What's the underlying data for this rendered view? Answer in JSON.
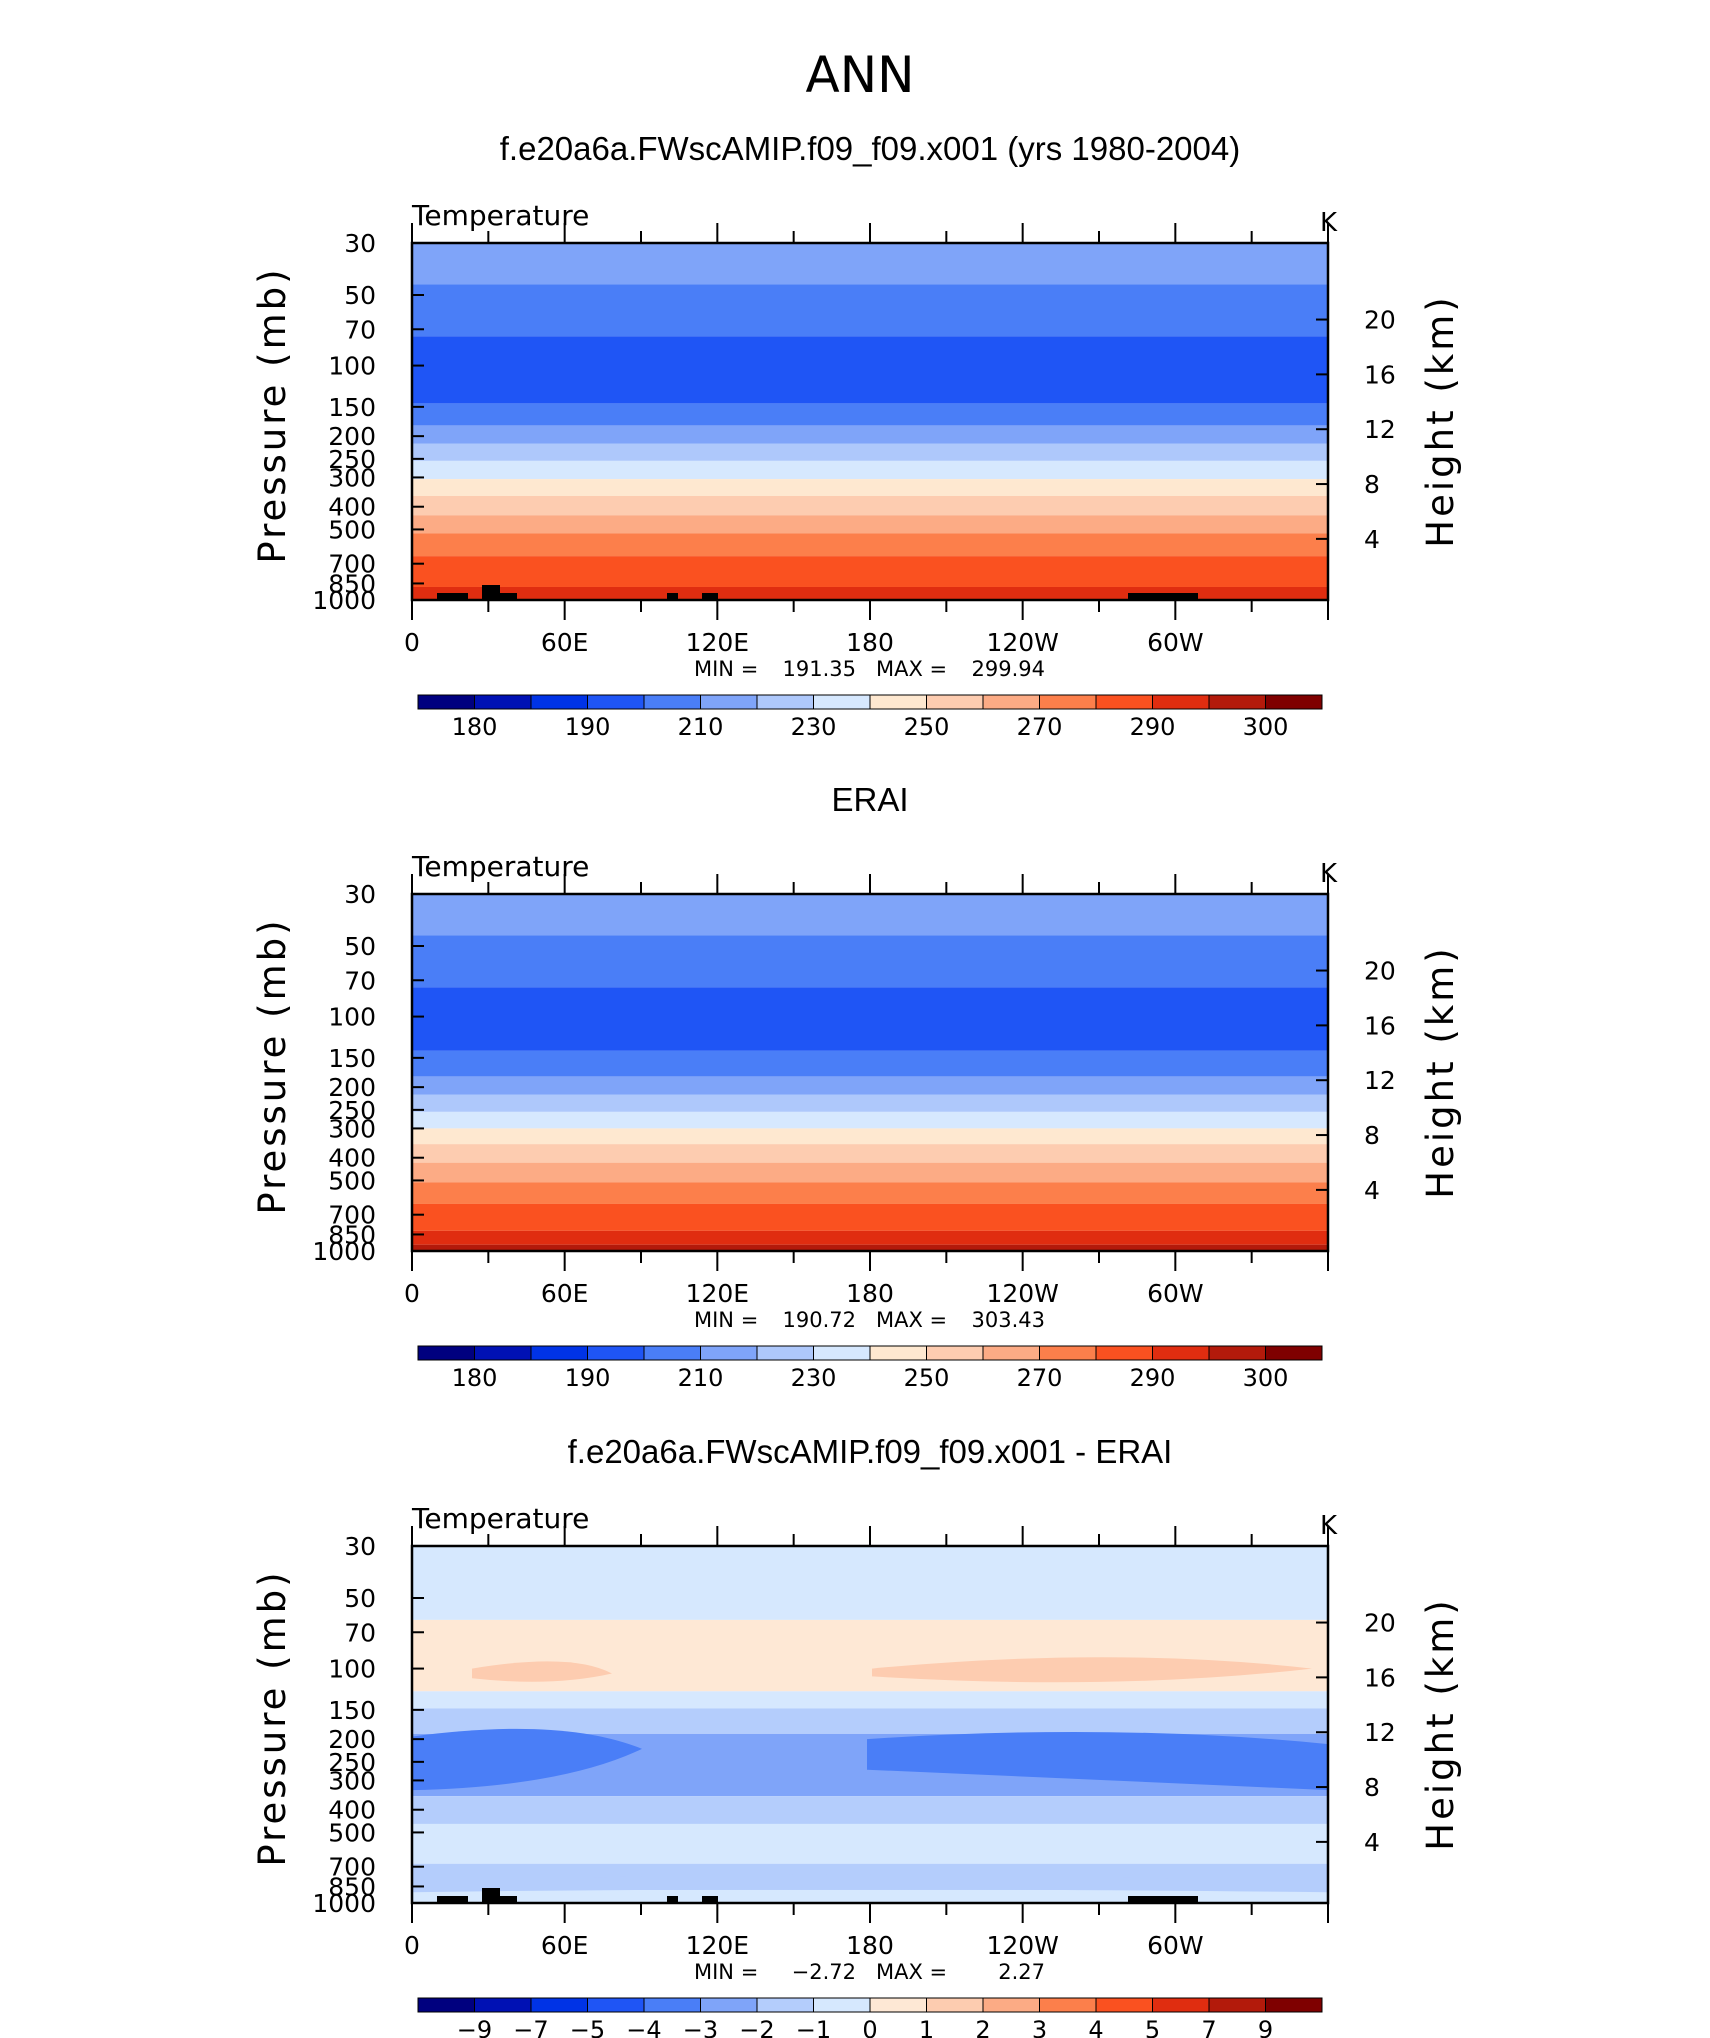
{
  "figure_title": "ANN",
  "colors": {
    "abs": [
      "#00007f",
      "#0011b4",
      "#0033e6",
      "#1f55f5",
      "#4a7ef7",
      "#7fa4f9",
      "#aec8fb",
      "#d6e8fe",
      "#fee8d0",
      "#fdccb0",
      "#fcab85",
      "#fc7f4b",
      "#fa5120",
      "#e02d10",
      "#b31a0b",
      "#7f0000"
    ],
    "diff": [
      "#00007f",
      "#0011b4",
      "#0033e6",
      "#1f55f5",
      "#4a7ef7",
      "#7fa4f9",
      "#b4cdfc",
      "#d6e8fe",
      "#fee8d5",
      "#fdccb0",
      "#fcab85",
      "#fc7f4b",
      "#fa5120",
      "#e02d10",
      "#b31a0b",
      "#7f0000"
    ]
  },
  "chart_data": [
    {
      "type": "heatmap",
      "title": "f.e20a6a.FWscAMIP.f09_f09.x001 (yrs 1980-2004)",
      "variable": "Temperature",
      "units": "K",
      "ylabel": "Pressure (mb)",
      "ylabel_right": "Height (km)",
      "pressure_ticks": [
        "30",
        "50",
        "70",
        "100",
        "150",
        "200",
        "250",
        "300",
        "400",
        "500",
        "700",
        "850",
        "1000"
      ],
      "height_ticks": [
        "20",
        "16",
        "12",
        "8",
        "4"
      ],
      "x_ticks": [
        "0",
        "60E",
        "120E",
        "180",
        "120W",
        "60W"
      ],
      "min_label": "MIN =",
      "min_value": "191.35",
      "max_label": "MAX =",
      "max_value": "299.94",
      "colorbar_labels": [
        "180",
        "190",
        "210",
        "230",
        "250",
        "270",
        "290",
        "300"
      ],
      "layers": [
        {
          "top": 30,
          "bottom": 45,
          "level": 5
        },
        {
          "top": 45,
          "bottom": 75,
          "level": 4
        },
        {
          "top": 75,
          "bottom": 145,
          "level": 3
        },
        {
          "top": 145,
          "bottom": 180,
          "level": 4
        },
        {
          "top": 180,
          "bottom": 215,
          "level": 5
        },
        {
          "top": 215,
          "bottom": 255,
          "level": 6
        },
        {
          "top": 255,
          "bottom": 305,
          "level": 7
        },
        {
          "top": 305,
          "bottom": 360,
          "level": 8
        },
        {
          "top": 360,
          "bottom": 435,
          "level": 9
        },
        {
          "top": 435,
          "bottom": 520,
          "level": 10
        },
        {
          "top": 520,
          "bottom": 650,
          "level": 11
        },
        {
          "top": 650,
          "bottom": 880,
          "level": 12
        },
        {
          "top": 880,
          "bottom": 1000,
          "level": 13
        }
      ]
    },
    {
      "type": "heatmap",
      "title": "ERAI",
      "variable": "Temperature",
      "units": "K",
      "ylabel": "Pressure (mb)",
      "ylabel_right": "Height (km)",
      "pressure_ticks": [
        "30",
        "50",
        "70",
        "100",
        "150",
        "200",
        "250",
        "300",
        "400",
        "500",
        "700",
        "850",
        "1000"
      ],
      "height_ticks": [
        "20",
        "16",
        "12",
        "8",
        "4"
      ],
      "x_ticks": [
        "0",
        "60E",
        "120E",
        "180",
        "120W",
        "60W"
      ],
      "min_label": "MIN =",
      "min_value": "190.72",
      "max_label": "MAX =",
      "max_value": "303.43",
      "colorbar_labels": [
        "180",
        "190",
        "210",
        "230",
        "250",
        "270",
        "290",
        "300"
      ],
      "layers": [
        {
          "top": 30,
          "bottom": 45,
          "level": 5
        },
        {
          "top": 45,
          "bottom": 75,
          "level": 4
        },
        {
          "top": 75,
          "bottom": 140,
          "level": 3
        },
        {
          "top": 140,
          "bottom": 180,
          "level": 4
        },
        {
          "top": 180,
          "bottom": 215,
          "level": 5
        },
        {
          "top": 215,
          "bottom": 255,
          "level": 6
        },
        {
          "top": 255,
          "bottom": 300,
          "level": 7
        },
        {
          "top": 300,
          "bottom": 350,
          "level": 8
        },
        {
          "top": 350,
          "bottom": 420,
          "level": 9
        },
        {
          "top": 420,
          "bottom": 510,
          "level": 10
        },
        {
          "top": 510,
          "bottom": 630,
          "level": 11
        },
        {
          "top": 630,
          "bottom": 820,
          "level": 12
        },
        {
          "top": 820,
          "bottom": 940,
          "level": 13
        },
        {
          "top": 940,
          "bottom": 1000,
          "level": 14
        }
      ]
    },
    {
      "type": "heatmap",
      "title": "f.e20a6a.FWscAMIP.f09_f09.x001 - ERAI",
      "variable": "Temperature",
      "units": "K",
      "ylabel": "Pressure (mb)",
      "ylabel_right": "Height (km)",
      "pressure_ticks": [
        "30",
        "50",
        "70",
        "100",
        "150",
        "200",
        "250",
        "300",
        "400",
        "500",
        "700",
        "850",
        "1000"
      ],
      "height_ticks": [
        "20",
        "16",
        "12",
        "8",
        "4"
      ],
      "x_ticks": [
        "0",
        "60E",
        "120E",
        "180",
        "120W",
        "60W"
      ],
      "min_label": "MIN =",
      "min_value": "−2.72",
      "max_label": "MAX =",
      "max_value": "2.27",
      "colorbar_labels": [
        "−9",
        "−7",
        "−5",
        "−4",
        "−3",
        "−2",
        "−1",
        "0",
        "1",
        "2",
        "3",
        "4",
        "5",
        "7",
        "9"
      ],
      "layers": [
        {
          "top": 30,
          "bottom": 62,
          "level": 7
        },
        {
          "top": 62,
          "bottom": 125,
          "level": 8
        },
        {
          "top": 125,
          "bottom": 148,
          "level": 7
        },
        {
          "top": 148,
          "bottom": 190,
          "level": 6
        },
        {
          "top": 190,
          "bottom": 350,
          "level": 5
        },
        {
          "top": 350,
          "bottom": 460,
          "level": 6
        },
        {
          "top": 460,
          "bottom": 680,
          "level": 7
        },
        {
          "top": 680,
          "bottom": 880,
          "level": 6
        },
        {
          "top": 880,
          "bottom": 1000,
          "level": 7
        }
      ]
    }
  ]
}
